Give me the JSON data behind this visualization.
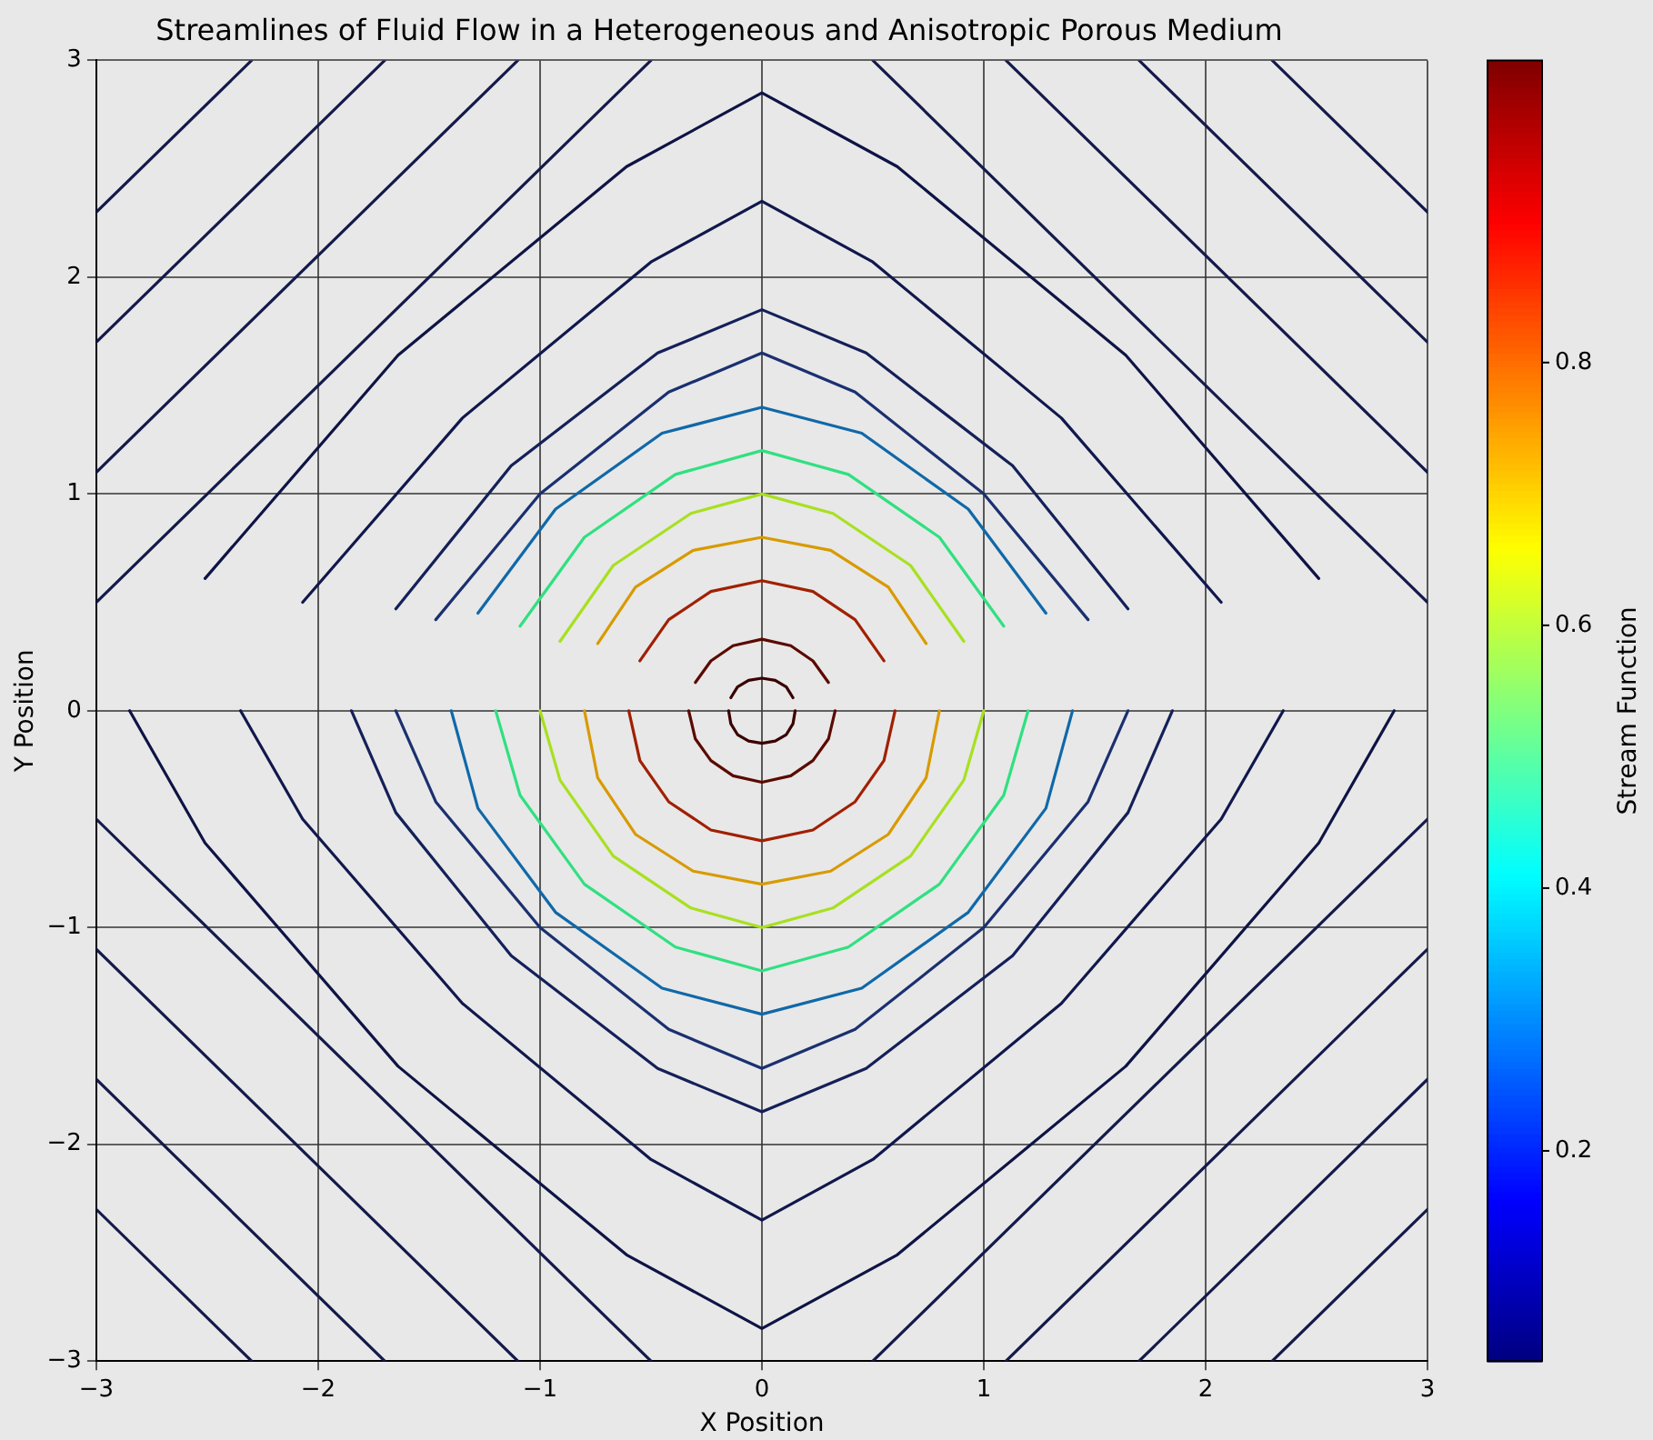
{
  "chart_data": {
    "type": "line",
    "title": "Streamlines of Fluid Flow in a Heterogeneous and Anisotropic Porous Medium",
    "xlabel": "X Position",
    "ylabel": "Y Position",
    "clabel": "Stream Function",
    "clim": [
      0.04,
      1.03
    ],
    "cticks": [
      0.2,
      0.4,
      0.6,
      0.8
    ],
    "xlim": [
      -3,
      3
    ],
    "ylim": [
      -3,
      3
    ],
    "xticks": [
      -3,
      -2,
      -1,
      0,
      1,
      2,
      3
    ],
    "yticks": [
      -3,
      -2,
      -1,
      0,
      1,
      2,
      3
    ],
    "grid": true,
    "legend": false,
    "marker": "none",
    "line_style": "solid",
    "series": [
      {
        "color": "#3a0000",
        "x": [
          -0.14,
          -0.11,
          -0.06,
          0,
          0.06,
          0.11,
          0.14
        ],
        "values": [
          0.06,
          0.11,
          0.14,
          0.15,
          0.14,
          0.11,
          0.06
        ]
      },
      {
        "color": "#3a0000",
        "x": [
          -0.15,
          -0.14,
          -0.11,
          -0.06,
          0,
          0.06,
          0.11,
          0.14,
          0.15
        ],
        "values": [
          0,
          -0.06,
          -0.11,
          -0.14,
          -0.15,
          -0.14,
          -0.11,
          -0.06,
          0
        ]
      },
      {
        "color": "#5a0a00",
        "x": [
          -0.3,
          -0.23,
          -0.13,
          0,
          0.13,
          0.23,
          0.3
        ],
        "values": [
          0.13,
          0.23,
          0.3,
          0.33,
          0.3,
          0.23,
          0.13
        ]
      },
      {
        "color": "#5a0a00",
        "x": [
          -0.33,
          -0.3,
          -0.23,
          -0.13,
          0,
          0.13,
          0.23,
          0.3,
          0.33
        ],
        "values": [
          0,
          -0.13,
          -0.23,
          -0.3,
          -0.33,
          -0.3,
          -0.23,
          -0.13,
          0
        ]
      },
      {
        "color": "#a02000",
        "x": [
          -0.55,
          -0.42,
          -0.23,
          0,
          0.23,
          0.42,
          0.55
        ],
        "values": [
          0.23,
          0.42,
          0.55,
          0.6,
          0.55,
          0.42,
          0.23
        ]
      },
      {
        "color": "#a02000",
        "x": [
          -0.6,
          -0.55,
          -0.42,
          -0.23,
          0,
          0.23,
          0.42,
          0.55,
          0.6
        ],
        "values": [
          0,
          -0.23,
          -0.42,
          -0.55,
          -0.6,
          -0.55,
          -0.42,
          -0.23,
          0
        ]
      },
      {
        "color": "#d89a00",
        "x": [
          -0.74,
          -0.57,
          -0.31,
          0,
          0.31,
          0.57,
          0.74
        ],
        "values": [
          0.31,
          0.57,
          0.74,
          0.8,
          0.74,
          0.57,
          0.31
        ]
      },
      {
        "color": "#d89a00",
        "x": [
          -0.8,
          -0.74,
          -0.57,
          -0.31,
          0,
          0.31,
          0.57,
          0.74,
          0.8
        ],
        "values": [
          0,
          -0.31,
          -0.57,
          -0.74,
          -0.8,
          -0.74,
          -0.57,
          -0.31,
          0
        ]
      },
      {
        "color": "#a8e020",
        "x": [
          -0.91,
          -0.67,
          -0.32,
          0,
          0.32,
          0.67,
          0.91
        ],
        "values": [
          0.32,
          0.67,
          0.91,
          1,
          0.91,
          0.67,
          0.32
        ]
      },
      {
        "color": "#a8e020",
        "x": [
          -1,
          -0.91,
          -0.67,
          -0.32,
          0,
          0.32,
          0.67,
          0.91,
          1
        ],
        "values": [
          0,
          -0.32,
          -0.67,
          -0.91,
          -1,
          -0.91,
          -0.67,
          -0.32,
          0
        ]
      },
      {
        "color": "#30e080",
        "x": [
          -1.09,
          -0.8,
          -0.39,
          0,
          0.39,
          0.8,
          1.09
        ],
        "values": [
          0.39,
          0.8,
          1.09,
          1.2,
          1.09,
          0.8,
          0.39
        ]
      },
      {
        "color": "#30e080",
        "x": [
          -1.2,
          -1.09,
          -0.8,
          -0.39,
          0,
          0.39,
          0.8,
          1.09,
          1.2
        ],
        "values": [
          0,
          -0.39,
          -0.8,
          -1.09,
          -1.2,
          -1.09,
          -0.8,
          -0.39,
          0
        ]
      },
      {
        "color": "#1068a8",
        "x": [
          -1.28,
          -0.93,
          -0.45,
          0,
          0.45,
          0.93,
          1.28
        ],
        "values": [
          0.45,
          0.93,
          1.28,
          1.4,
          1.28,
          0.93,
          0.45
        ]
      },
      {
        "color": "#1068a8",
        "x": [
          -1.4,
          -1.28,
          -0.93,
          -0.45,
          0,
          0.45,
          0.93,
          1.28,
          1.4
        ],
        "values": [
          0,
          -0.45,
          -0.93,
          -1.28,
          -1.4,
          -1.28,
          -0.93,
          -0.45,
          0
        ]
      },
      {
        "color": "#1a3070",
        "x": [
          -1.47,
          -1,
          -0.42,
          0,
          0.42,
          1,
          1.47
        ],
        "values": [
          0.42,
          1,
          1.47,
          1.65,
          1.47,
          1,
          0.42
        ]
      },
      {
        "color": "#1a3070",
        "x": [
          -1.65,
          -1.47,
          -1,
          -0.42,
          0,
          0.42,
          1,
          1.47,
          1.65
        ],
        "values": [
          0,
          -0.42,
          -1,
          -1.47,
          -1.65,
          -1.47,
          -1,
          -0.42,
          0
        ]
      },
      {
        "color": "#142058",
        "x": [
          -1.65,
          -1.13,
          -0.47,
          0,
          0.47,
          1.13,
          1.65
        ],
        "values": [
          0.47,
          1.13,
          1.65,
          1.85,
          1.65,
          1.13,
          0.47
        ]
      },
      {
        "color": "#142058",
        "x": [
          -1.85,
          -1.65,
          -1.13,
          -0.47,
          0,
          0.47,
          1.13,
          1.65,
          1.85
        ],
        "values": [
          0,
          -0.47,
          -1.13,
          -1.65,
          -1.85,
          -1.65,
          -1.13,
          -0.47,
          0
        ]
      },
      {
        "color": "#10184c",
        "x": [
          -2.07,
          -1.35,
          -0.5,
          0,
          0.5,
          1.35,
          2.07
        ],
        "values": [
          0.5,
          1.35,
          2.07,
          2.35,
          2.07,
          1.35,
          0.5
        ]
      },
      {
        "color": "#10184c",
        "x": [
          -2.35,
          -2.07,
          -1.35,
          -0.5,
          0,
          0.5,
          1.35,
          2.07,
          2.35
        ],
        "values": [
          0,
          -0.5,
          -1.35,
          -2.07,
          -2.35,
          -2.07,
          -1.35,
          -0.5,
          0
        ]
      },
      {
        "color": "#0e1444",
        "x": [
          -2.51,
          -1.64,
          -0.61,
          0,
          0.61,
          1.64,
          2.51
        ],
        "values": [
          0.61,
          1.64,
          2.51,
          2.85,
          2.51,
          1.64,
          0.61
        ]
      },
      {
        "color": "#0e1444",
        "x": [
          -2.85,
          -2.51,
          -1.64,
          -0.61,
          0,
          0.61,
          1.64,
          2.51,
          2.85
        ],
        "values": [
          0,
          -0.61,
          -1.64,
          -2.51,
          -2.85,
          -2.51,
          -1.64,
          -0.61,
          0
        ]
      },
      {
        "color": "#141a4a",
        "x": [
          0.5,
          3
        ],
        "values": [
          3,
          0.5
        ]
      },
      {
        "color": "#141a4a",
        "x": [
          1.1,
          3
        ],
        "values": [
          3,
          1.1
        ]
      },
      {
        "color": "#141a4a",
        "x": [
          1.7,
          3
        ],
        "values": [
          3,
          1.7
        ]
      },
      {
        "color": "#141a4a",
        "x": [
          2.3,
          3
        ],
        "values": [
          3,
          2.3
        ]
      },
      {
        "color": "#141a4a",
        "x": [
          -3,
          -0.5
        ],
        "values": [
          0.5,
          3
        ]
      },
      {
        "color": "#141a4a",
        "x": [
          -3,
          -1.1
        ],
        "values": [
          1.1,
          3
        ]
      },
      {
        "color": "#141a4a",
        "x": [
          -3,
          -1.7
        ],
        "values": [
          1.7,
          3
        ]
      },
      {
        "color": "#141a4a",
        "x": [
          -3,
          -2.3
        ],
        "values": [
          2.3,
          3
        ]
      },
      {
        "color": "#141a4a",
        "x": [
          -3,
          -0.5
        ],
        "values": [
          -0.5,
          -3
        ]
      },
      {
        "color": "#141a4a",
        "x": [
          -3,
          -1.1
        ],
        "values": [
          -1.1,
          -3
        ]
      },
      {
        "color": "#141a4a",
        "x": [
          -3,
          -1.7
        ],
        "values": [
          -1.7,
          -3
        ]
      },
      {
        "color": "#141a4a",
        "x": [
          -3,
          -2.3
        ],
        "values": [
          -2.3,
          -3
        ]
      },
      {
        "color": "#141a4a",
        "x": [
          0.5,
          3
        ],
        "values": [
          -3,
          -0.5
        ]
      },
      {
        "color": "#141a4a",
        "x": [
          1.1,
          3
        ],
        "values": [
          -3,
          -1.1
        ]
      },
      {
        "color": "#141a4a",
        "x": [
          1.7,
          3
        ],
        "values": [
          -3,
          -1.7
        ]
      },
      {
        "color": "#141a4a",
        "x": [
          2.3,
          3
        ],
        "values": [
          -3,
          -2.3
        ]
      }
    ]
  }
}
